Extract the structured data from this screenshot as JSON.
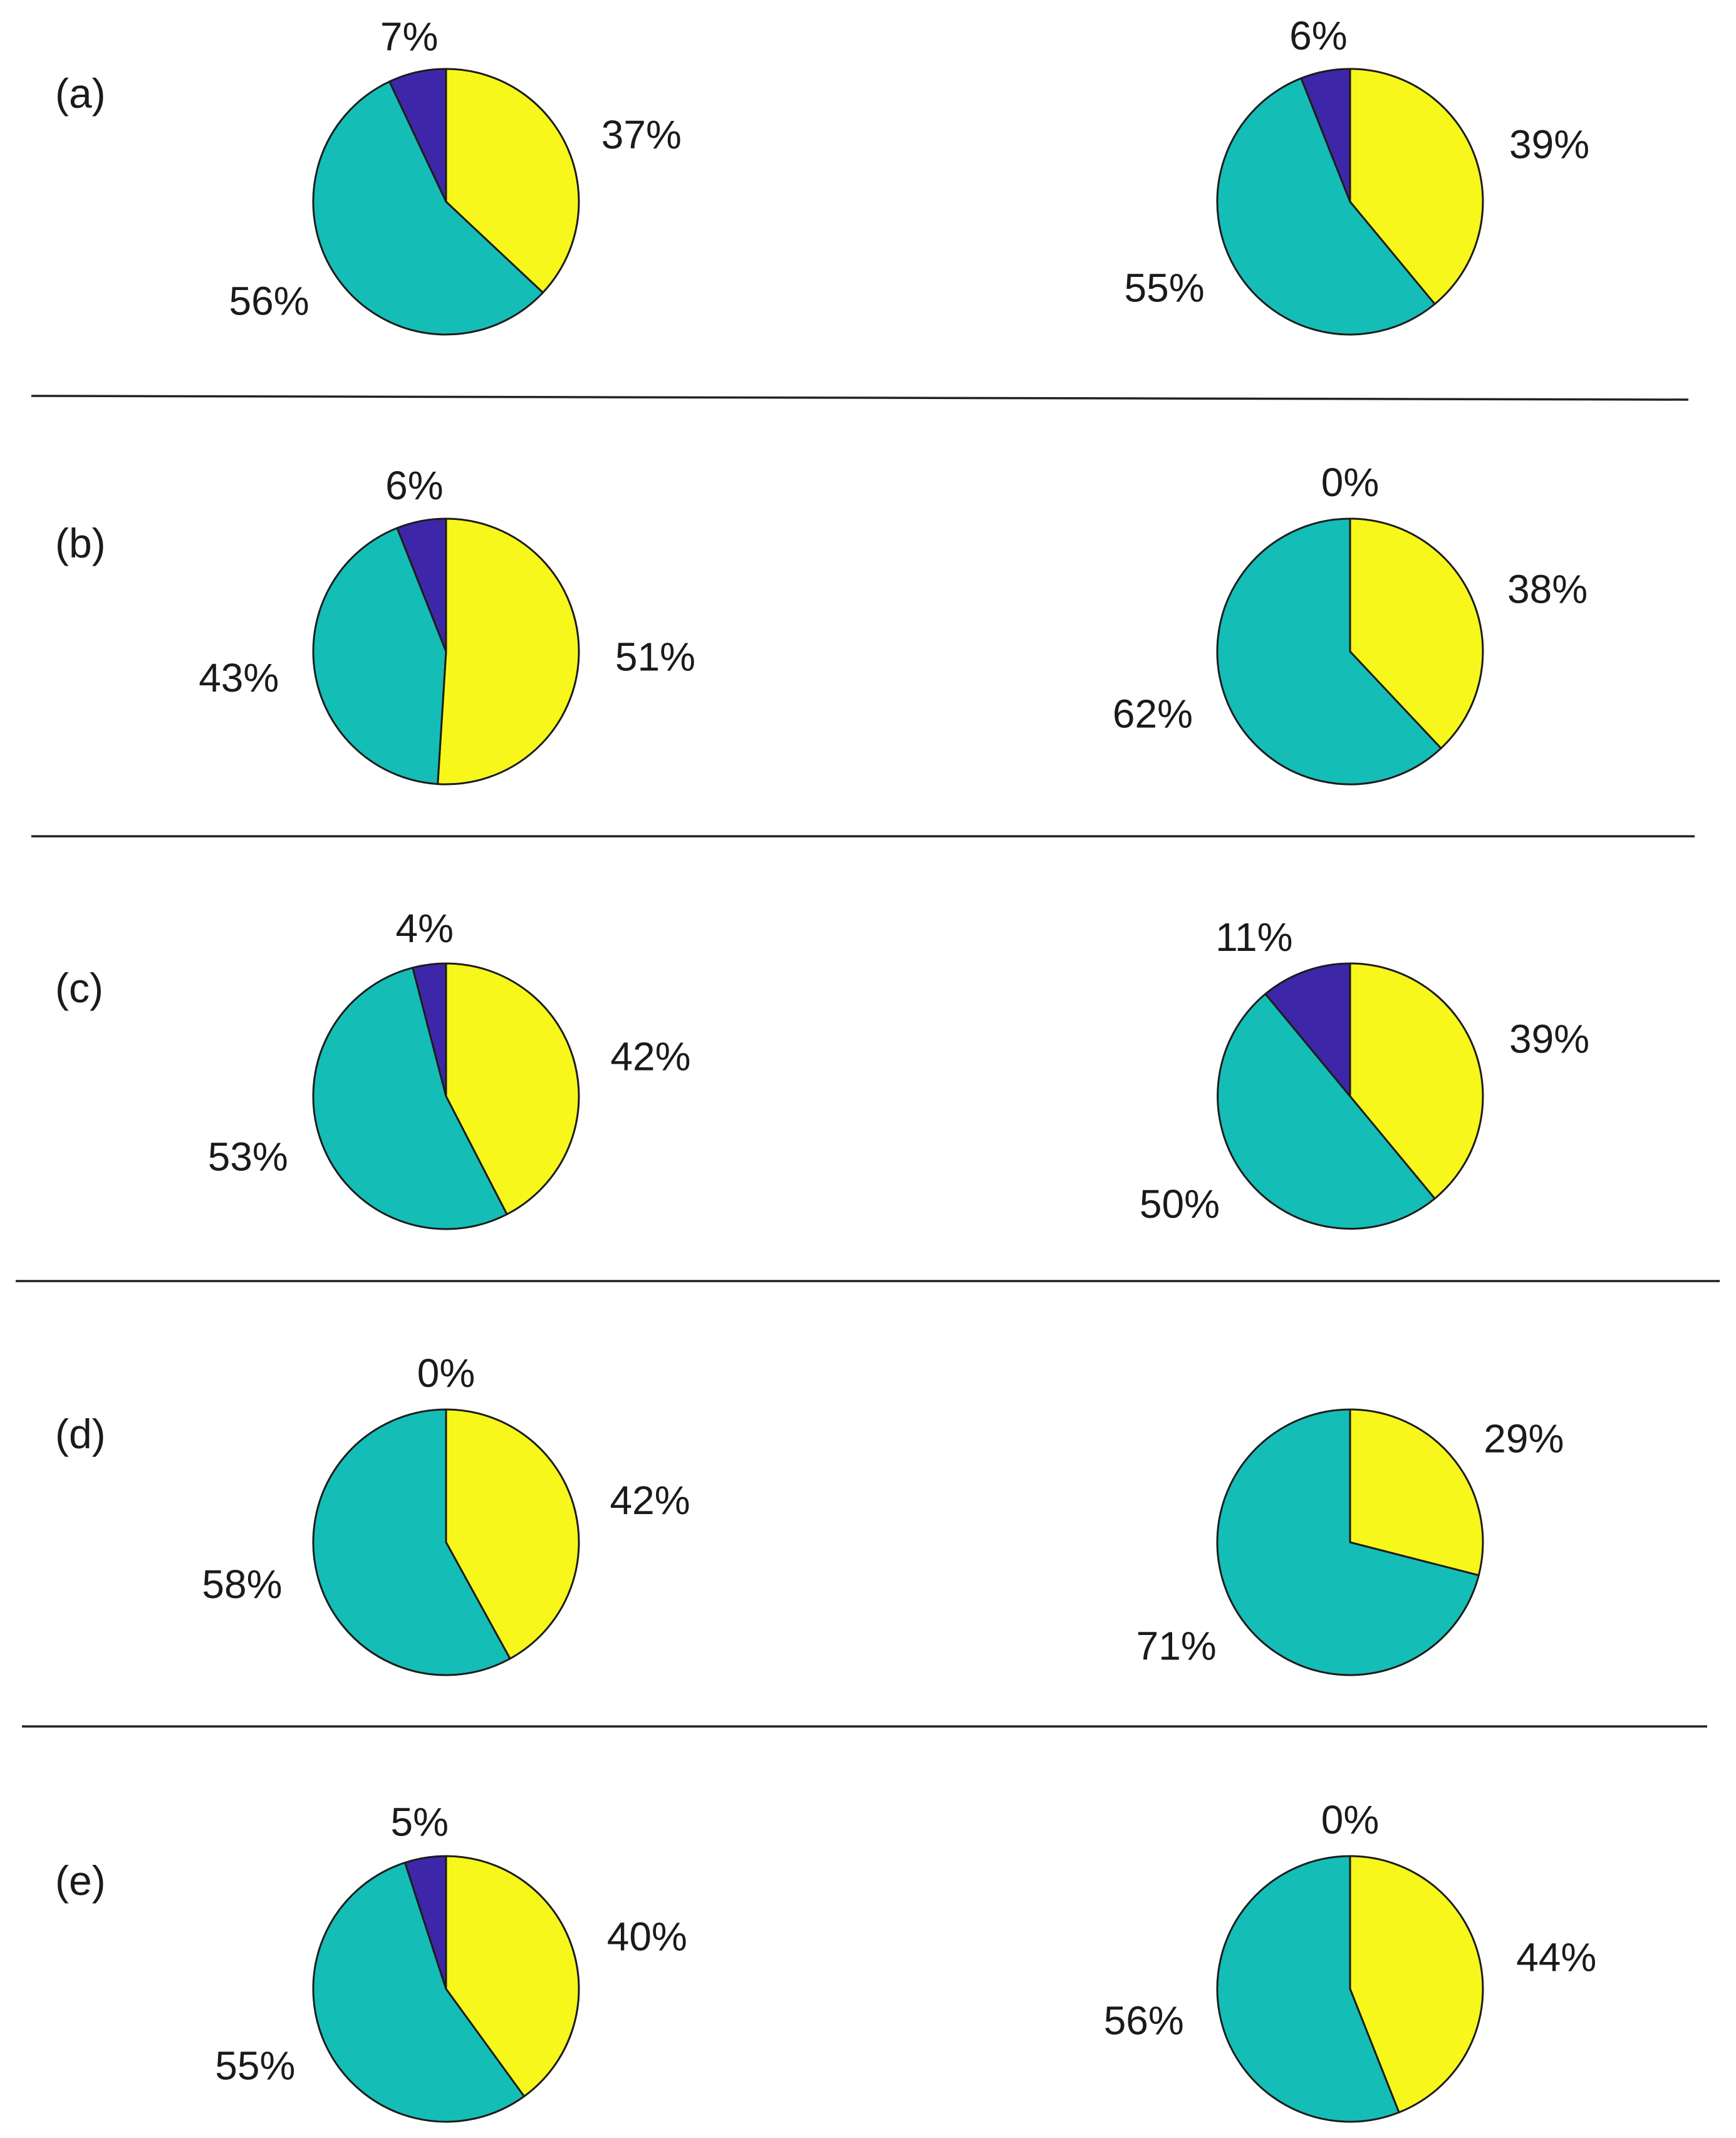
{
  "colors": {
    "yellow": "#f7f71b",
    "teal": "#15bdb7",
    "navy": "#3e26a8",
    "outline": "#1c1c1c",
    "text": "#1a1a1a"
  },
  "chart_data": [
    {
      "type": "pie",
      "panel": "(a)",
      "pies": [
        {
          "slices": [
            {
              "label": "37%",
              "value": 37,
              "color": "yellow"
            },
            {
              "label": "56%",
              "value": 56,
              "color": "teal"
            },
            {
              "label": "7%",
              "value": 7,
              "color": "navy"
            }
          ]
        },
        {
          "slices": [
            {
              "label": "39%",
              "value": 39,
              "color": "yellow"
            },
            {
              "label": "55%",
              "value": 55,
              "color": "teal"
            },
            {
              "label": "6%",
              "value": 6,
              "color": "navy"
            }
          ]
        }
      ]
    },
    {
      "type": "pie",
      "panel": "(b)",
      "pies": [
        {
          "slices": [
            {
              "label": "51%",
              "value": 51,
              "color": "yellow"
            },
            {
              "label": "43%",
              "value": 43,
              "color": "teal"
            },
            {
              "label": "6%",
              "value": 6,
              "color": "navy"
            }
          ]
        },
        {
          "slices": [
            {
              "label": "38%",
              "value": 38,
              "color": "yellow"
            },
            {
              "label": "62%",
              "value": 62,
              "color": "teal"
            },
            {
              "label": "0%",
              "value": 0,
              "color": "navy"
            }
          ]
        }
      ]
    },
    {
      "type": "pie",
      "panel": "(c)",
      "pies": [
        {
          "slices": [
            {
              "label": "42%",
              "value": 42,
              "color": "yellow"
            },
            {
              "label": "53%",
              "value": 53,
              "color": "teal"
            },
            {
              "label": "4%",
              "value": 4,
              "color": "navy"
            }
          ]
        },
        {
          "slices": [
            {
              "label": "39%",
              "value": 39,
              "color": "yellow"
            },
            {
              "label": "50%",
              "value": 50,
              "color": "teal"
            },
            {
              "label": "11%",
              "value": 11,
              "color": "navy"
            }
          ]
        }
      ]
    },
    {
      "type": "pie",
      "panel": "(d)",
      "pies": [
        {
          "slices": [
            {
              "label": "42%",
              "value": 42,
              "color": "yellow"
            },
            {
              "label": "58%",
              "value": 58,
              "color": "teal"
            },
            {
              "label": "0%",
              "value": 0,
              "color": "navy"
            }
          ]
        },
        {
          "slices": [
            {
              "label": "29%",
              "value": 29,
              "color": "yellow"
            },
            {
              "label": "71%",
              "value": 71,
              "color": "teal"
            }
          ]
        }
      ]
    },
    {
      "type": "pie",
      "panel": "(e)",
      "pies": [
        {
          "slices": [
            {
              "label": "40%",
              "value": 40,
              "color": "yellow"
            },
            {
              "label": "55%",
              "value": 55,
              "color": "teal"
            },
            {
              "label": "5%",
              "value": 5,
              "color": "navy"
            }
          ]
        },
        {
          "slices": [
            {
              "label": "44%",
              "value": 44,
              "color": "yellow"
            },
            {
              "label": "56%",
              "value": 56,
              "color": "teal"
            },
            {
              "label": "0%",
              "value": 0,
              "color": "navy"
            }
          ]
        }
      ]
    }
  ]
}
